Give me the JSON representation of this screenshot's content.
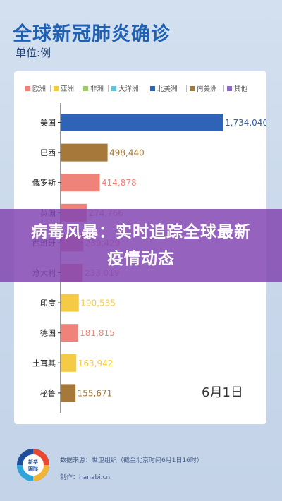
{
  "header": {
    "title": "全球新冠肺炎确诊",
    "unit": "单位:例"
  },
  "overlay": {
    "headline": "病毒风暴：实时追踪全球最新疫情动态"
  },
  "chart": {
    "date": "6月1日"
  },
  "footer": {
    "logo_text": "新华国际",
    "source": "数据来源：世卫组织（截至北京时间6月1日16时）",
    "maker": "制作：hanabi.cn"
  },
  "colors": {
    "europe": "#ef8379",
    "asia": "#f5cb46",
    "africa": "#9cc96b",
    "oceania": "#63c1db",
    "north_america": "#2e63b7",
    "south_america": "#a6783a",
    "other": "#8a6bbf"
  },
  "chart_data": {
    "type": "bar",
    "orientation": "horizontal",
    "legend": [
      {
        "name": "欧洲",
        "color": "#ef8379"
      },
      {
        "name": "亚洲",
        "color": "#f5cb46"
      },
      {
        "name": "非洲",
        "color": "#9cc96b"
      },
      {
        "name": "大洋洲",
        "color": "#63c1db"
      },
      {
        "name": "北美洲",
        "color": "#2e63b7"
      },
      {
        "name": "南美洲",
        "color": "#a6783a"
      },
      {
        "name": "其他",
        "color": "#8a6bbf"
      }
    ],
    "legend_position": "top",
    "grid": false,
    "bars": [
      {
        "category": "美国",
        "value": 1734040,
        "label": "1,734,040",
        "color": "#2e63b7"
      },
      {
        "category": "巴西",
        "value": 498440,
        "label": "498,440",
        "color": "#a6783a"
      },
      {
        "category": "俄罗斯",
        "value": 414878,
        "label": "414,878",
        "color": "#ef8379"
      },
      {
        "category": "英国",
        "value": 274766,
        "label": "274,766",
        "color": "#ef8379"
      },
      {
        "category": "西班牙",
        "value": 239429,
        "label": "239,429",
        "color": "#ef8379"
      },
      {
        "category": "意大利",
        "value": 233019,
        "label": "233,019",
        "color": "#ef8379"
      },
      {
        "category": "印度",
        "value": 190535,
        "label": "190,535",
        "color": "#f5cb46"
      },
      {
        "category": "德国",
        "value": 181815,
        "label": "181,815",
        "color": "#ef8379"
      },
      {
        "category": "土耳其",
        "value": 163942,
        "label": "163,942",
        "color": "#f5cb46"
      },
      {
        "category": "秘鲁",
        "value": 155671,
        "label": "155,671",
        "color": "#a6783a"
      }
    ],
    "xlim": [
      0,
      1734040
    ]
  }
}
